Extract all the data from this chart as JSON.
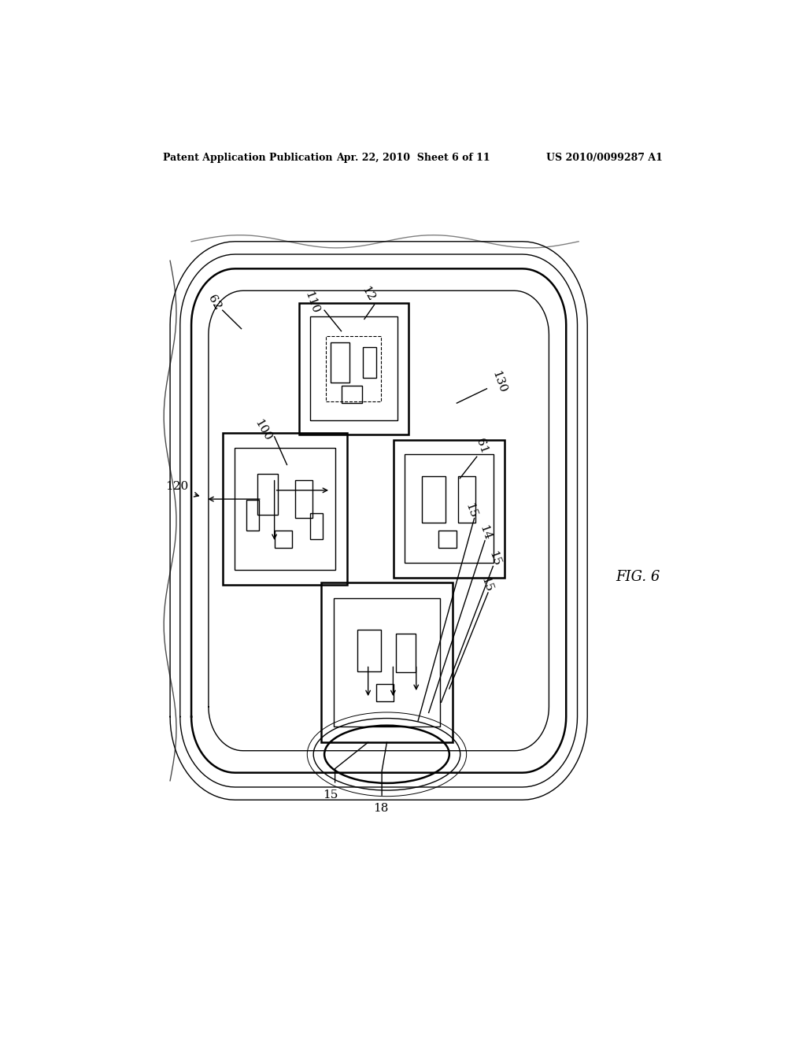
{
  "title_left": "Patent Application Publication",
  "title_center": "Apr. 22, 2010  Sheet 6 of 11",
  "title_right": "US 2010/0099287 A1",
  "fig_label": "FIG. 6",
  "background_color": "#ffffff",
  "line_color": "#000000"
}
